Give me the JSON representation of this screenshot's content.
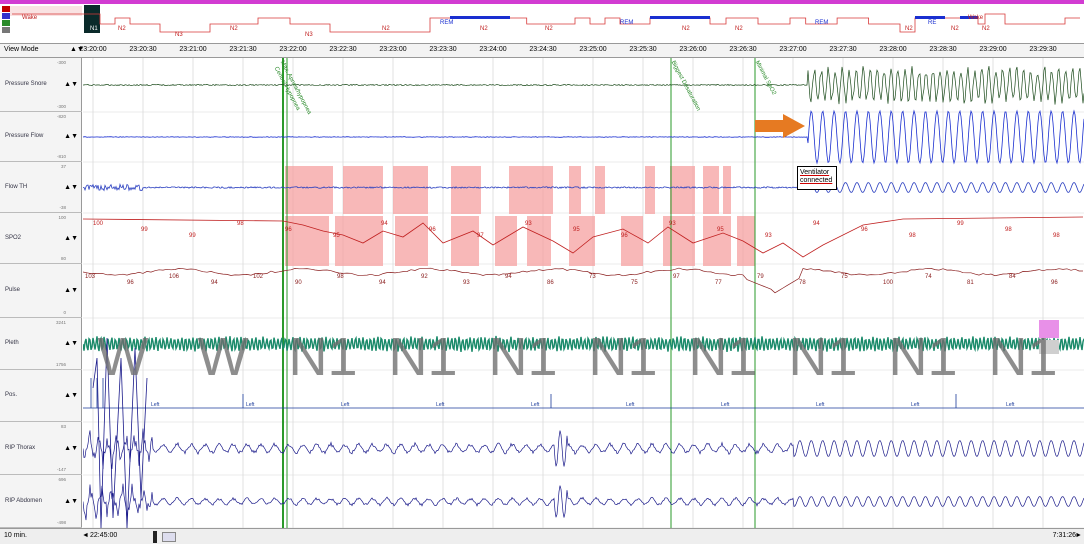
{
  "hypnogram": {
    "stage_labels": [
      "Wake",
      "N1",
      "N2",
      "N3",
      "N2",
      "N3",
      "N2",
      "REM",
      "N2",
      "N2",
      "REM",
      "N2",
      "N2",
      "REM",
      "N2",
      "RE",
      "N2",
      "Wake",
      "N2"
    ],
    "legend_colors": [
      "#c00000",
      "#3333cc",
      "#2a8a2a",
      "#777777"
    ],
    "wake_color": "#d83a3a",
    "rem_color": "#1a2fd0",
    "line_color": "#d83a3a"
  },
  "toolbar": {
    "view_mode": "View Mode",
    "arrows": "▲▼"
  },
  "time_axis": {
    "ticks": [
      "23:20:00",
      "23:20:30",
      "23:21:00",
      "23:21:30",
      "23:22:00",
      "23:22:30",
      "23:23:00",
      "23:23:30",
      "23:24:00",
      "23:24:30",
      "23:25:00",
      "23:25:30",
      "23:26:00",
      "23:26:30",
      "23:27:00",
      "23:27:30",
      "23:28:00",
      "23:28:30",
      "23:29:00",
      "23:29:30"
    ]
  },
  "channels": [
    {
      "name": "Pressure Snore",
      "scale_top": "-300",
      "scale_bottom": "-300"
    },
    {
      "name": "Pressure Flow",
      "scale_top": "-820",
      "scale_bottom": "-810"
    },
    {
      "name": "Flow TH",
      "scale_top": "37",
      "scale_bottom": "-38"
    },
    {
      "name": "SPO2",
      "scale_top": "100",
      "scale_bottom": "80"
    },
    {
      "name": "Pulse",
      "scale_top": "",
      "scale_bottom": "0"
    },
    {
      "name": "Pleth",
      "scale_top": "3241",
      "scale_bottom": "1756"
    },
    {
      "name": "Pos.",
      "scale_top": "",
      "scale_bottom": ""
    },
    {
      "name": "RIP Thorax",
      "scale_top": "83",
      "scale_bottom": "-147"
    },
    {
      "name": "RIP Abdomen",
      "scale_top": "696",
      "scale_bottom": "-498"
    }
  ],
  "sleep_stages": [
    "W",
    "W",
    "N1",
    "N1",
    "N1",
    "N1",
    "N1",
    "N1",
    "N1",
    "N1"
  ],
  "spo2_values": [
    "100",
    "99",
    "99",
    "98",
    "96",
    "95",
    "94",
    "96",
    "97",
    "93",
    "95",
    "96",
    "93",
    "95",
    "93",
    "94",
    "96",
    "98",
    "99",
    "98",
    "98"
  ],
  "pulse_values": [
    "103",
    "96",
    "106",
    "94",
    "102",
    "90",
    "98",
    "94",
    "92",
    "93",
    "94",
    "86",
    "73",
    "75",
    "97",
    "77",
    "79",
    "78",
    "75",
    "100",
    "74",
    "81",
    "84",
    "96"
  ],
  "position_labels": [
    "Left",
    "Left",
    "Left",
    "Left",
    "Left",
    "Left",
    "Left",
    "Left",
    "Left",
    "Left"
  ],
  "annotations": {
    "ventilator": "Ventilator connected",
    "event1": "Max. Apnea/hypopnea",
    "event1b": "Central Hypopnea",
    "event2": "Biggest Desaturation",
    "event3": "Minimal SpO2"
  },
  "colors": {
    "snore": "#1a4a1a",
    "flow": "#1a2fd0",
    "flowth": "#2a3fc0",
    "spo2": "#c02020",
    "pulse": "#8b2020",
    "pleth": "#1a8a6a",
    "pos": "#1a3a9a",
    "rip": "#1a1a8a",
    "event_box": "#f5a0a0",
    "event_line": "#2a9a2a",
    "arrow": "#e67a22"
  },
  "status_bar": {
    "zoom": "10 min.",
    "start": "22:45:00",
    "end": "7:31:26",
    "left": "◄",
    "right": "►"
  }
}
